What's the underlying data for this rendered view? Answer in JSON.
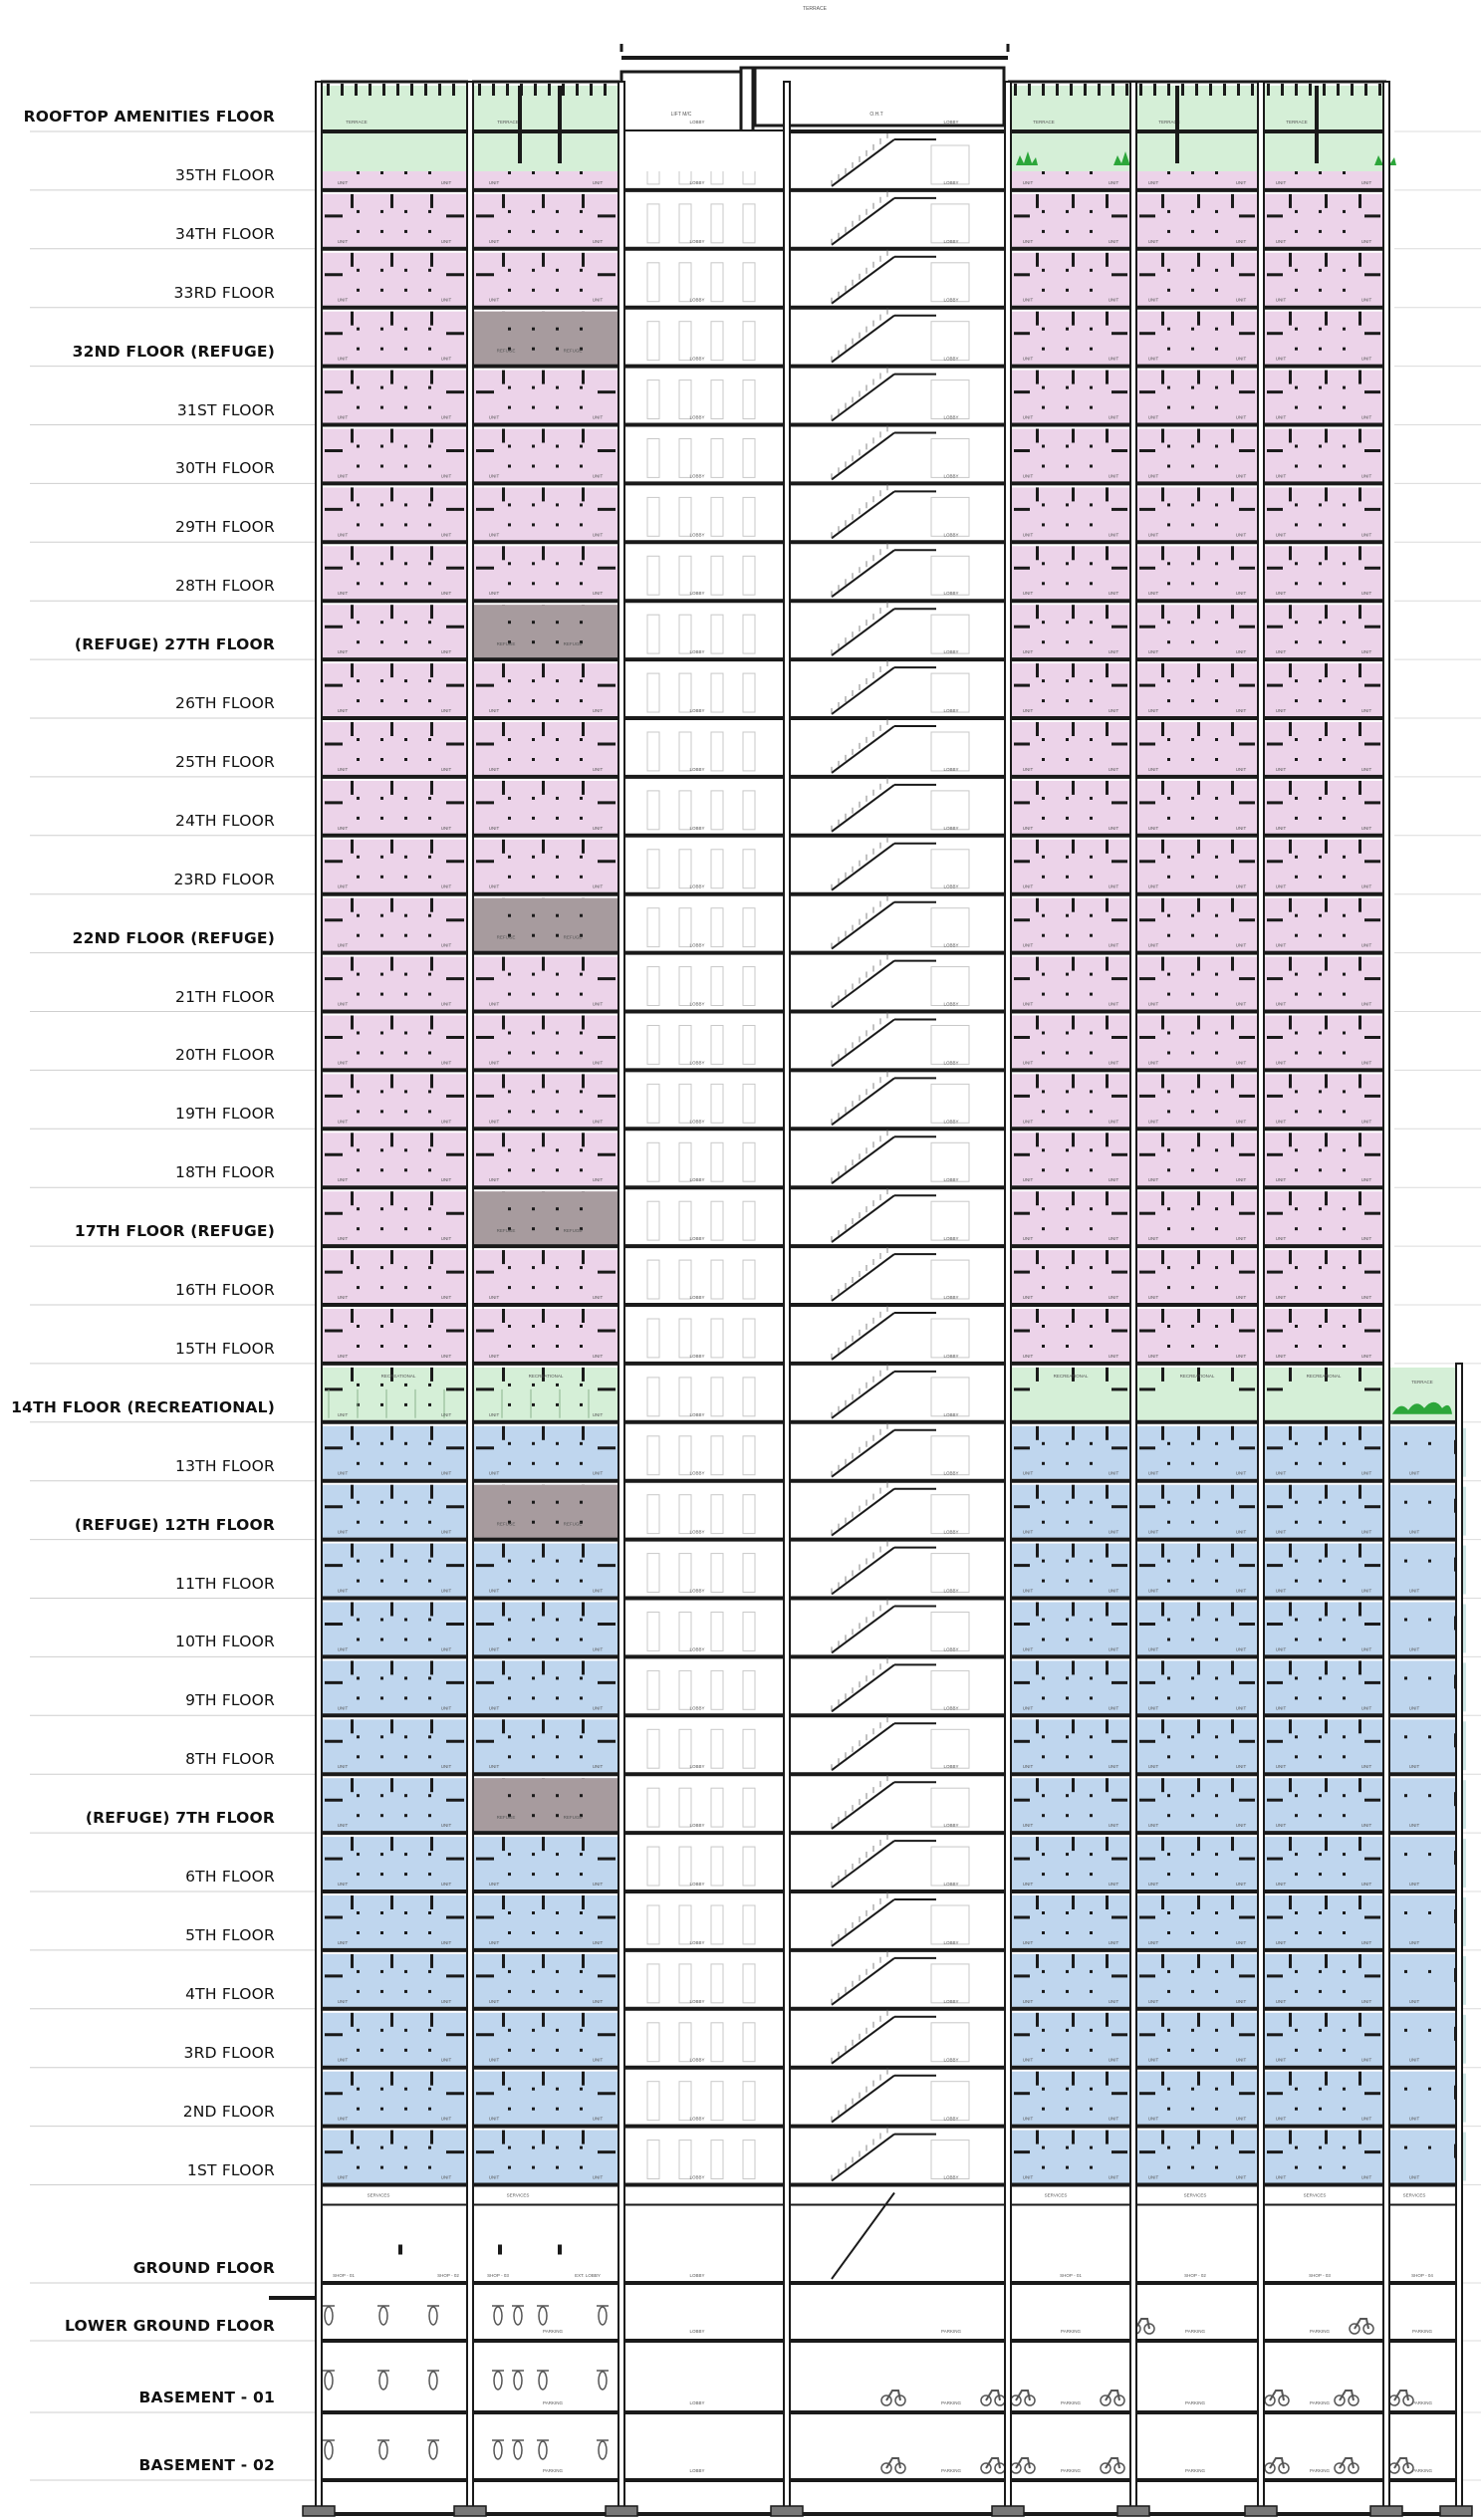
{
  "drawing": {
    "floors": [
      {
        "label": "ROOFTOP AMENITIES FLOOR",
        "bold": true,
        "use": "rooftop"
      },
      {
        "label": "35TH FLOOR",
        "bold": false,
        "use": "residential-upper"
      },
      {
        "label": "34TH FLOOR",
        "bold": false,
        "use": "residential-upper"
      },
      {
        "label": "33RD FLOOR",
        "bold": false,
        "use": "residential-upper"
      },
      {
        "label": "32ND FLOOR (REFUGE)",
        "bold": true,
        "use": "refuge-upper"
      },
      {
        "label": "31ST FLOOR",
        "bold": false,
        "use": "residential-upper"
      },
      {
        "label": "30TH FLOOR",
        "bold": false,
        "use": "residential-upper"
      },
      {
        "label": "29TH FLOOR",
        "bold": false,
        "use": "residential-upper"
      },
      {
        "label": "28TH FLOOR",
        "bold": false,
        "use": "residential-upper"
      },
      {
        "label": "(REFUGE) 27TH FLOOR",
        "bold": true,
        "use": "refuge-upper"
      },
      {
        "label": "26TH FLOOR",
        "bold": false,
        "use": "residential-upper"
      },
      {
        "label": "25TH FLOOR",
        "bold": false,
        "use": "residential-upper"
      },
      {
        "label": "24TH FLOOR",
        "bold": false,
        "use": "residential-upper"
      },
      {
        "label": "23RD FLOOR",
        "bold": false,
        "use": "residential-upper"
      },
      {
        "label": "22ND FLOOR (REFUGE)",
        "bold": true,
        "use": "refuge-upper"
      },
      {
        "label": "21TH FLOOR",
        "bold": false,
        "use": "residential-upper"
      },
      {
        "label": "20TH FLOOR",
        "bold": false,
        "use": "residential-upper"
      },
      {
        "label": "19TH FLOOR",
        "bold": false,
        "use": "residential-upper"
      },
      {
        "label": "18TH FLOOR",
        "bold": false,
        "use": "residential-upper"
      },
      {
        "label": "17TH FLOOR (REFUGE)",
        "bold": true,
        "use": "refuge-upper"
      },
      {
        "label": "16TH  FLOOR",
        "bold": false,
        "use": "residential-upper"
      },
      {
        "label": "15TH FLOOR",
        "bold": false,
        "use": "residential-upper"
      },
      {
        "label": "14TH FLOOR (RECREATIONAL)",
        "bold": true,
        "use": "recreational"
      },
      {
        "label": "13TH FLOOR",
        "bold": false,
        "use": "residential-lower"
      },
      {
        "label": "(REFUGE) 12TH FLOOR",
        "bold": true,
        "use": "refuge-lower"
      },
      {
        "label": "11TH FLOOR",
        "bold": false,
        "use": "residential-lower"
      },
      {
        "label": "10TH FLOOR",
        "bold": false,
        "use": "residential-lower"
      },
      {
        "label": "9TH FLOOR",
        "bold": false,
        "use": "residential-lower"
      },
      {
        "label": "8TH FLOOR",
        "bold": false,
        "use": "residential-lower"
      },
      {
        "label": "(REFUGE) 7TH FLOOR",
        "bold": true,
        "use": "refuge-lower"
      },
      {
        "label": "6TH FLOOR",
        "bold": false,
        "use": "residential-lower"
      },
      {
        "label": "5TH FLOOR",
        "bold": false,
        "use": "residential-lower"
      },
      {
        "label": "4TH FLOOR",
        "bold": false,
        "use": "residential-lower"
      },
      {
        "label": "3RD FLOOR",
        "bold": false,
        "use": "residential-lower"
      },
      {
        "label": "2ND FLOOR",
        "bold": false,
        "use": "residential-lower"
      },
      {
        "label": "1ST FLOOR",
        "bold": false,
        "use": "residential-lower"
      },
      {
        "label": "GROUND FLOOR",
        "bold": true,
        "use": "ground"
      },
      {
        "label": "LOWER GROUND FLOOR",
        "bold": true,
        "use": "parking"
      },
      {
        "label": "BASEMENT - 01",
        "bold": true,
        "use": "parking"
      },
      {
        "label": "BASEMENT - 02",
        "bold": true,
        "use": "parking"
      }
    ],
    "room_labels": {
      "unit": "UNIT",
      "lobby": "LOBBY",
      "terrace": "TERRACE",
      "refuge": "REFUGE AREA",
      "recreational": "RECREATIONAL AREA",
      "services": "SERVICES",
      "parking": "PARKING",
      "shop": "SHOP",
      "lift_machine": "LIFT M/C",
      "otr": "O.H.T",
      "top": "TERRACE"
    },
    "colors": {
      "residential_upper": "#ecd3e9",
      "residential_lower": "#bfd6ee",
      "recreational": "#d5efd7",
      "rooftop": "#d5efd7",
      "refuge": "#a79b9e",
      "plant": "#2ca63a",
      "ink": "#1a1a1a"
    }
  }
}
